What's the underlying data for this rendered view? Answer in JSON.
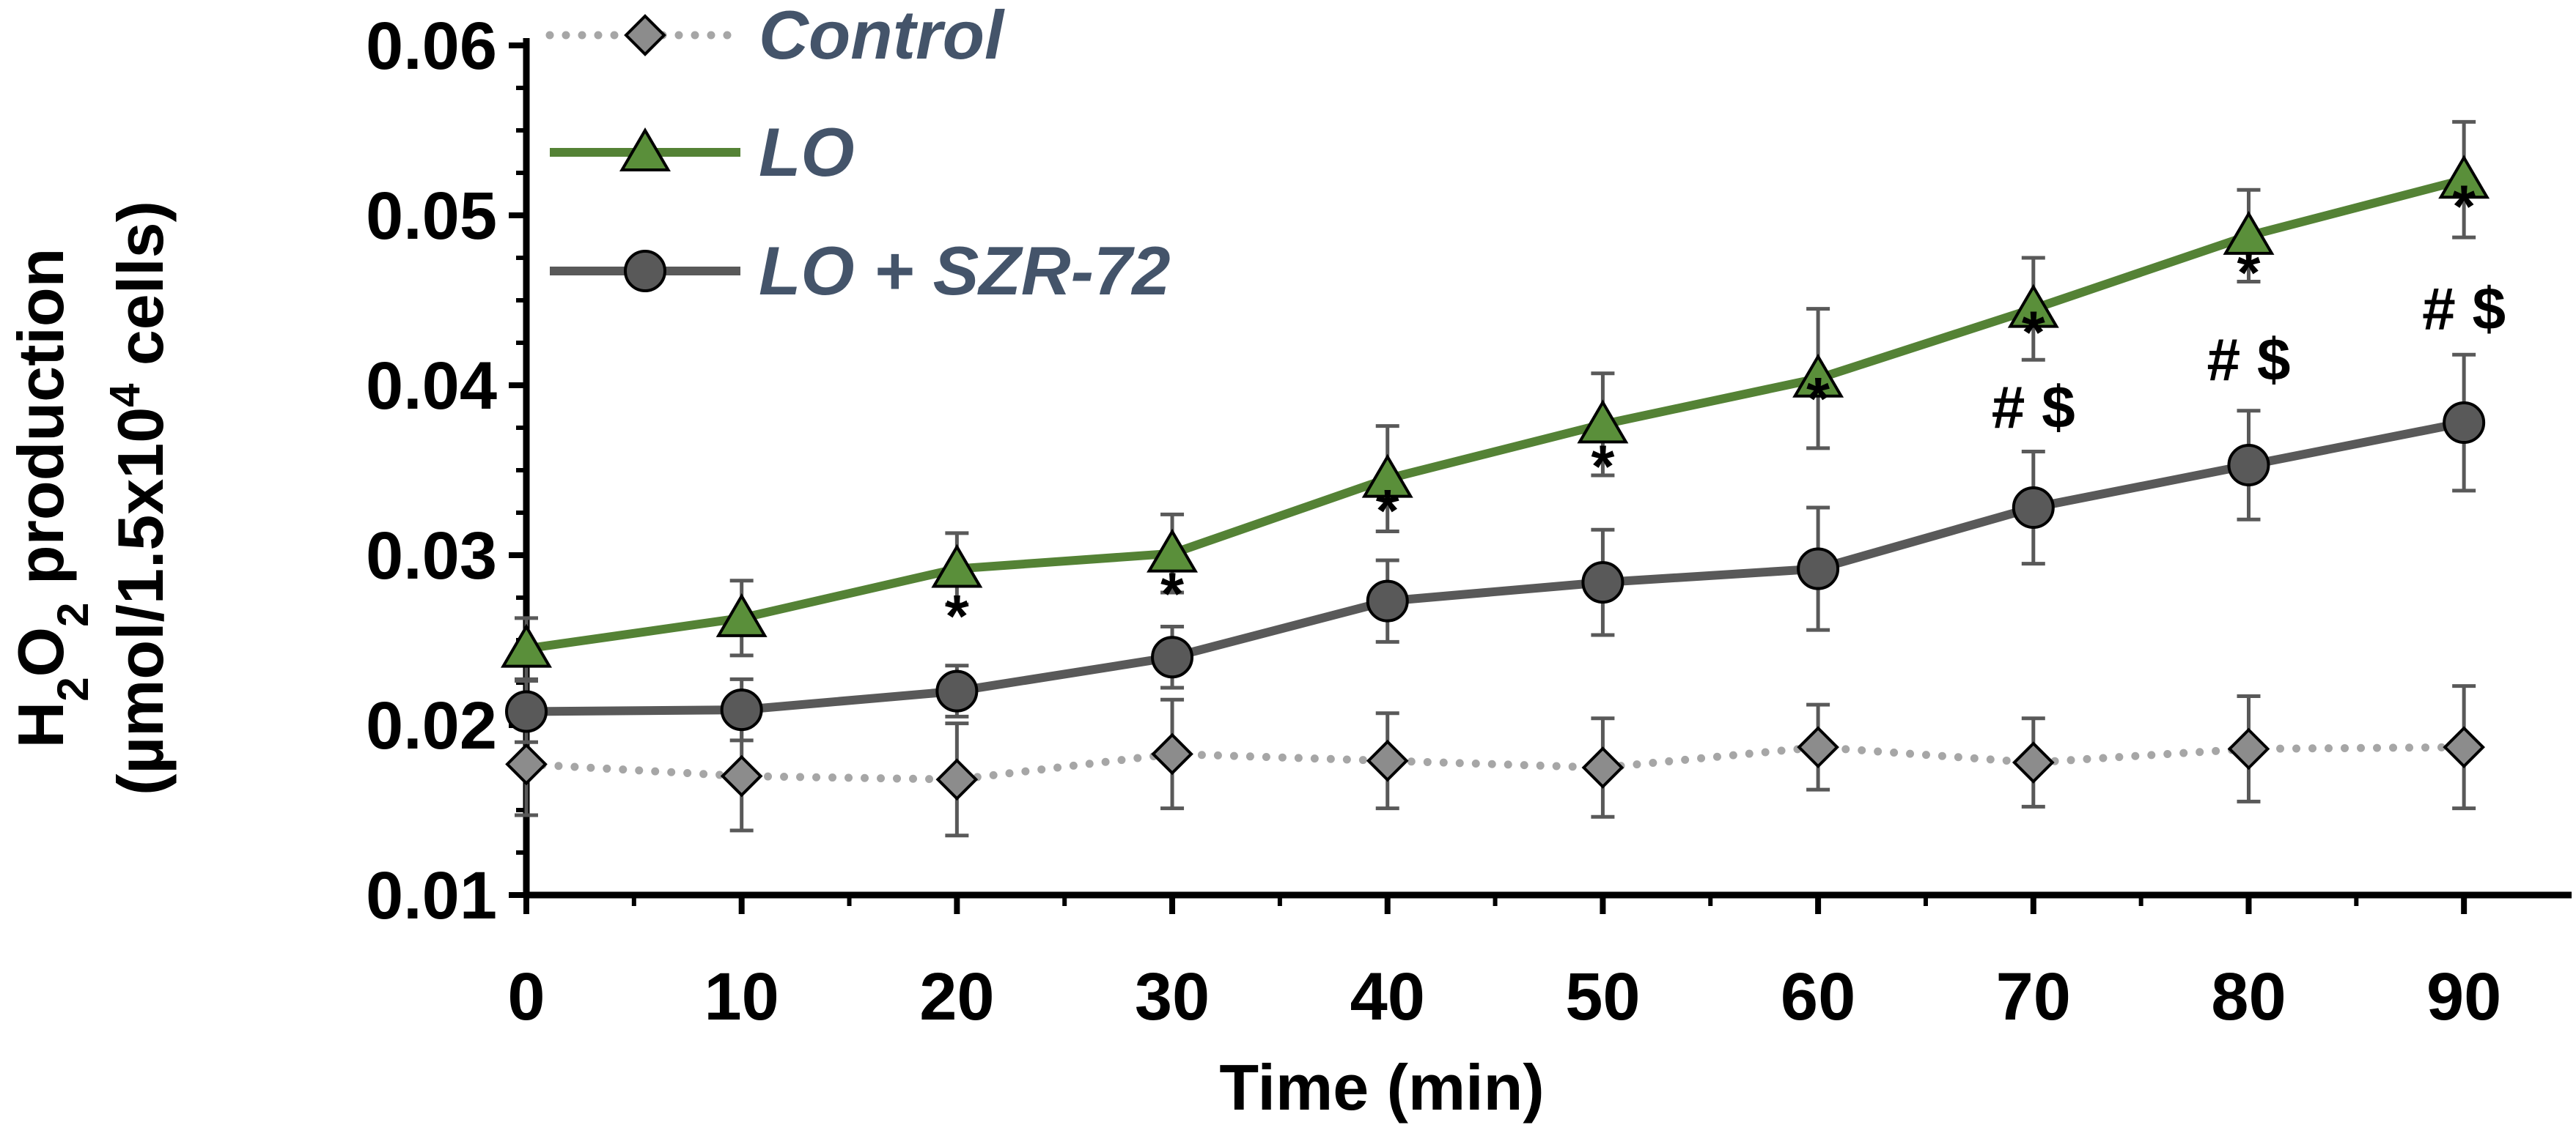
{
  "chart_data": {
    "type": "line",
    "xlabel": "Time (min)",
    "ylabel_line1_parts": [
      "H",
      "2",
      "O",
      "2",
      " production"
    ],
    "ylabel_line2_parts": [
      "(µmol/1.5x10",
      "4",
      " cells)"
    ],
    "x": [
      0,
      10,
      20,
      30,
      40,
      50,
      60,
      70,
      80,
      90
    ],
    "xlim": [
      0,
      95
    ],
    "ylim": [
      0.01,
      0.06
    ],
    "x_ticks": [
      0,
      10,
      20,
      30,
      40,
      50,
      60,
      70,
      80,
      90
    ],
    "y_ticks": [
      0.01,
      0.02,
      0.03,
      0.04,
      0.05,
      0.06
    ],
    "y_tick_labels": [
      "0.01",
      "0.02",
      "0.03",
      "0.04",
      "0.05",
      "0.06"
    ],
    "legend_position": "top-left",
    "series": [
      {
        "name": "Control",
        "marker": "diamond",
        "line_style": "dotted",
        "color": "#a6a6a6",
        "marker_color": "#8c8c8c",
        "values": [
          0.0177,
          0.017,
          0.0168,
          0.0183,
          0.0179,
          0.0175,
          0.0187,
          0.0178,
          0.0186,
          0.0187
        ],
        "errors": [
          0.003,
          0.0032,
          0.0033,
          0.0032,
          0.0028,
          0.0029,
          0.0025,
          0.0026,
          0.0031,
          0.0036
        ]
      },
      {
        "name": "LO",
        "marker": "triangle",
        "line_style": "solid",
        "color": "#548235",
        "marker_color": "#5a8f3a",
        "values": [
          0.0245,
          0.0263,
          0.0292,
          0.0301,
          0.0345,
          0.0377,
          0.0404,
          0.0445,
          0.0488,
          0.0521
        ],
        "errors": [
          0.0018,
          0.0022,
          0.0021,
          0.0023,
          0.0031,
          0.003,
          0.0041,
          0.003,
          0.0027,
          0.0034
        ]
      },
      {
        "name": "LO + SZR-72",
        "marker": "circle",
        "line_style": "solid",
        "color": "#595959",
        "marker_color": "#595959",
        "values": [
          0.0208,
          0.0209,
          0.022,
          0.024,
          0.0273,
          0.0284,
          0.0292,
          0.0328,
          0.0353,
          0.0378
        ],
        "errors": [
          0.0018,
          0.0018,
          0.0015,
          0.0018,
          0.0024,
          0.0031,
          0.0036,
          0.0033,
          0.0032,
          0.004
        ]
      }
    ],
    "annotations": [
      {
        "x": 20,
        "y": 0.0252,
        "text": "*"
      },
      {
        "x": 30,
        "y": 0.0265,
        "text": "*"
      },
      {
        "x": 40,
        "y": 0.0314,
        "text": "*"
      },
      {
        "x": 50,
        "y": 0.034,
        "text": "*"
      },
      {
        "x": 60,
        "y": 0.038,
        "text": "*"
      },
      {
        "x": 70,
        "y": 0.0419,
        "text": "*"
      },
      {
        "x": 80,
        "y": 0.0454,
        "text": "*"
      },
      {
        "x": 90,
        "y": 0.0493,
        "text": "*"
      },
      {
        "x": 70,
        "y": 0.0375,
        "text": "# $"
      },
      {
        "x": 80,
        "y": 0.0403,
        "text": "# $"
      },
      {
        "x": 90,
        "y": 0.0433,
        "text": "# $"
      }
    ]
  }
}
